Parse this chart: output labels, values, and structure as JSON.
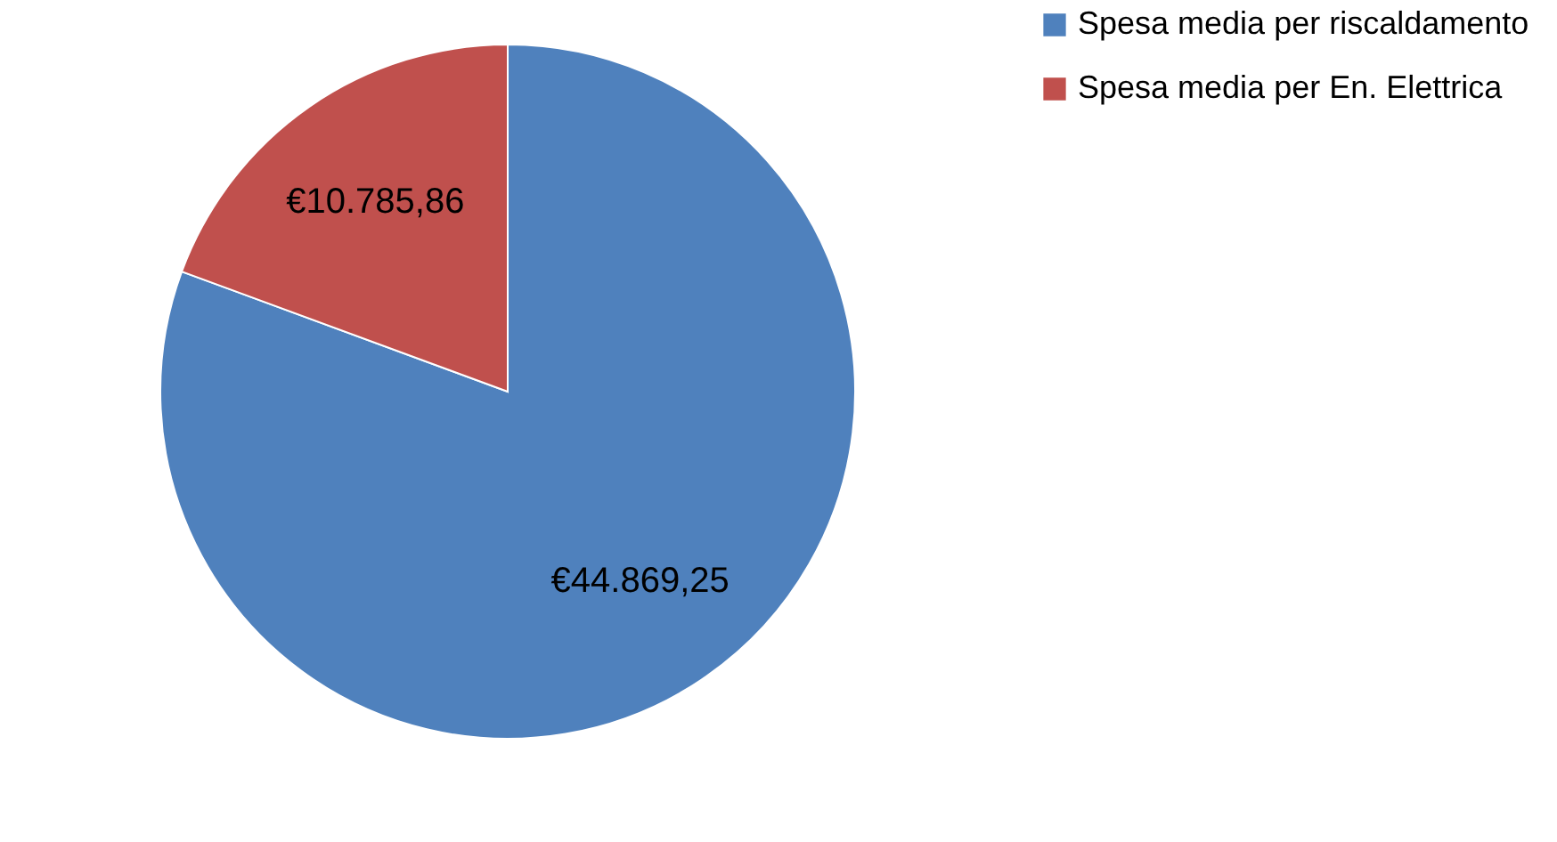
{
  "chart_data": {
    "type": "pie",
    "categories": [
      "Spesa media per riscaldamento",
      "Spesa media per En. Elettrica"
    ],
    "values": [
      44869.25,
      10785.86
    ],
    "colors": [
      "#4f81bd",
      "#c0504d"
    ],
    "value_labels": [
      "€44.869,25",
      "€10.785,86"
    ],
    "legend": "right"
  }
}
